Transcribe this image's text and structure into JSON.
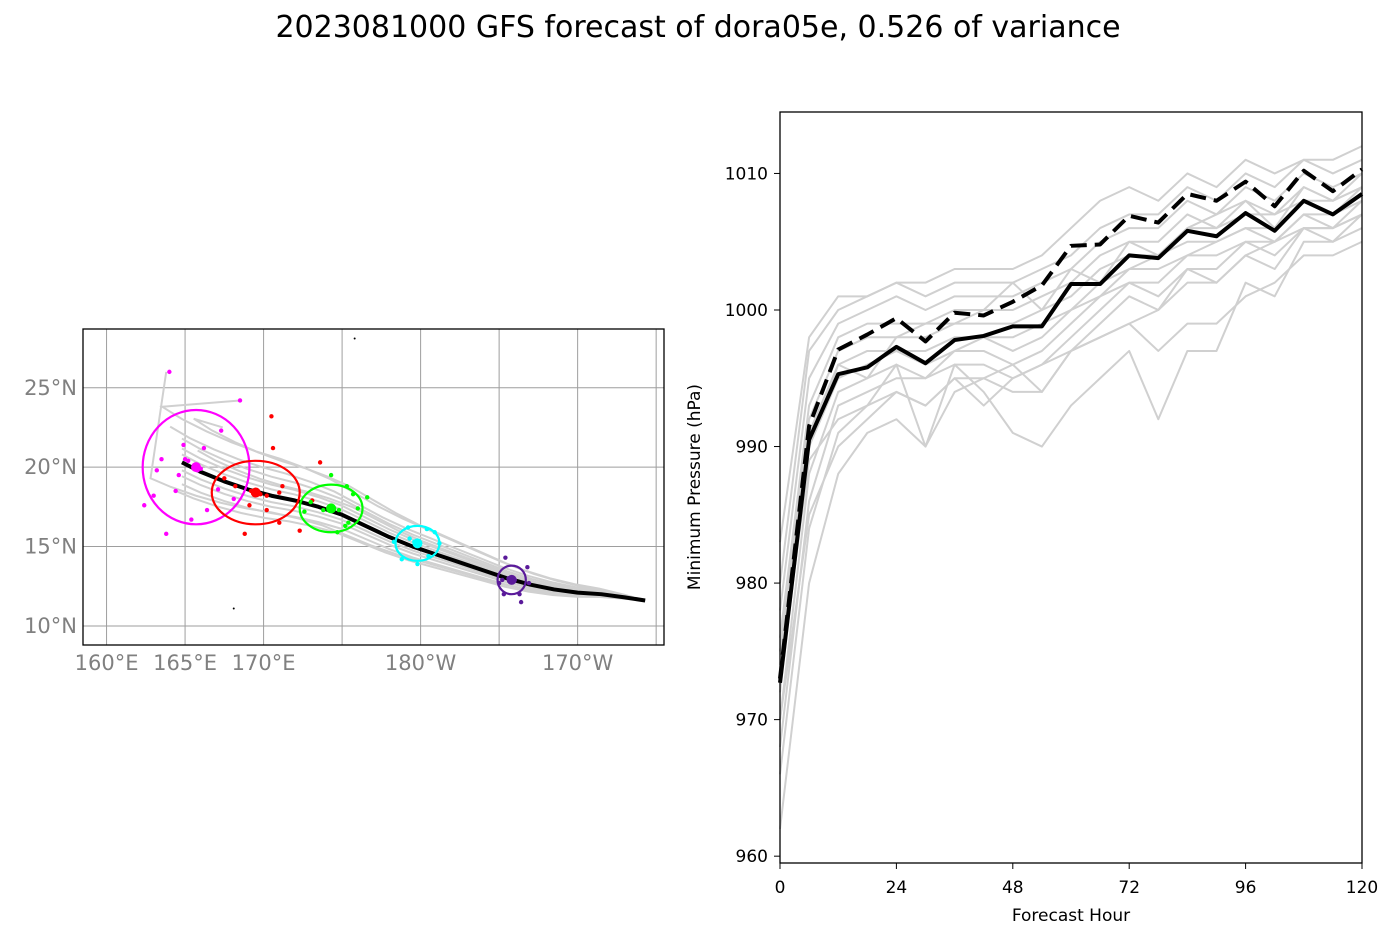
{
  "title": "2023081000 GFS forecast of dora05e, 0.526 of variance",
  "map": {
    "lon_range": [
      158.5,
      195.5
    ],
    "lat_range": [
      8.8,
      28.7
    ],
    "lon_ticks": [
      {
        "value": 160,
        "label": "160°E"
      },
      {
        "value": 165,
        "label": "165°E"
      },
      {
        "value": 170,
        "label": "170°E"
      },
      {
        "value": 180,
        "label": "180°W"
      },
      {
        "value": 190,
        "label": "170°W"
      }
    ],
    "lon_grid": [
      160,
      165,
      170,
      175,
      180,
      185,
      190,
      195
    ],
    "lat_ticks": [
      {
        "value": 10,
        "label": "10°N"
      },
      {
        "value": 15,
        "label": "15°N"
      },
      {
        "value": 20,
        "label": "20°N"
      },
      {
        "value": 25,
        "label": "25°N"
      }
    ],
    "mean_track": [
      [
        194.3,
        11.6
      ],
      [
        193,
        11.8
      ],
      [
        191.5,
        12
      ],
      [
        190,
        12.1
      ],
      [
        188.5,
        12.3
      ],
      [
        187,
        12.6
      ],
      [
        185.5,
        13
      ],
      [
        184,
        13.5
      ],
      [
        182.5,
        14
      ],
      [
        181,
        14.5
      ],
      [
        179.5,
        15
      ],
      [
        178,
        15.6
      ],
      [
        176.5,
        16.3
      ],
      [
        175,
        17
      ],
      [
        173.5,
        17.5
      ],
      [
        172,
        17.9
      ],
      [
        170.5,
        18.2
      ],
      [
        169,
        18.6
      ],
      [
        167.5,
        19.1
      ],
      [
        166,
        19.7
      ],
      [
        164.8,
        20.3
      ]
    ],
    "ellipses": [
      {
        "color": "#ff00ff",
        "cx": 165.7,
        "cy": 20.0,
        "rx": 3.4,
        "ry": 3.6,
        "dots": [
          [
            164,
            26
          ],
          [
            163.5,
            20.5
          ],
          [
            163,
            18.2
          ],
          [
            162.4,
            17.6
          ],
          [
            163.2,
            19.8
          ],
          [
            164.4,
            18.5
          ],
          [
            164.9,
            21.4
          ],
          [
            165.4,
            16.7
          ],
          [
            166.4,
            17.3
          ],
          [
            167.1,
            18.6
          ],
          [
            168.1,
            18
          ],
          [
            168.5,
            24.2
          ],
          [
            167.3,
            22.3
          ],
          [
            166.2,
            21.2
          ],
          [
            164.6,
            19.5
          ],
          [
            163.8,
            15.8
          ],
          [
            165,
            20.5
          ],
          [
            165.2,
            20.4
          ],
          [
            165.8,
            19.8
          ],
          [
            166,
            19.9
          ]
        ]
      },
      {
        "color": "#ff0000",
        "cx": 169.5,
        "cy": 18.4,
        "rx": 2.8,
        "ry": 2.0,
        "dots": [
          [
            170.5,
            23.2
          ],
          [
            170.6,
            21.2
          ],
          [
            171.2,
            18.8
          ],
          [
            171,
            18.4
          ],
          [
            170.2,
            17.3
          ],
          [
            169.1,
            17.6
          ],
          [
            168.8,
            15.8
          ],
          [
            171,
            16.5
          ],
          [
            169.5,
            18.4
          ],
          [
            169.8,
            18.3
          ],
          [
            169.2,
            18.5
          ],
          [
            170.2,
            18.2
          ],
          [
            168.2,
            18.8
          ],
          [
            167.5,
            19.3
          ],
          [
            172.3,
            16
          ],
          [
            173.1,
            17.9
          ],
          [
            173.6,
            20.3
          ]
        ]
      },
      {
        "color": "#00ff00",
        "cx": 174.3,
        "cy": 17.4,
        "rx": 2.0,
        "ry": 1.5,
        "dots": [
          [
            174.3,
            19.5
          ],
          [
            175.7,
            18.3
          ],
          [
            176,
            17.4
          ],
          [
            175.4,
            16.5
          ],
          [
            174.7,
            15.9
          ],
          [
            173,
            17.8
          ],
          [
            172.6,
            17.2
          ],
          [
            175.3,
            18.8
          ],
          [
            174.5,
            17.4
          ],
          [
            174.8,
            17.3
          ],
          [
            173.8,
            17.3
          ],
          [
            175.2,
            16.3
          ],
          [
            176.6,
            18.1
          ]
        ]
      },
      {
        "color": "#00ffff",
        "cx": 179.8,
        "cy": 15.2,
        "rx": 1.4,
        "ry": 1.1,
        "dots": [
          [
            180.9,
            15.9
          ],
          [
            181.2,
            15.2
          ],
          [
            180.5,
            14.4
          ],
          [
            179.8,
            13.9
          ],
          [
            178.8,
            14.2
          ],
          [
            178.3,
            15.3
          ],
          [
            179.2,
            16.2
          ],
          [
            180.4,
            16.1
          ],
          [
            179.6,
            15.3
          ],
          [
            179.8,
            15.2
          ],
          [
            179.3,
            15.5
          ]
        ]
      },
      {
        "color": "#5a1a9a",
        "cx": 185.8,
        "cy": 12.9,
        "rx": 0.9,
        "ry": 0.9,
        "dots": [
          [
            185.4,
            14.3
          ],
          [
            186.8,
            13.7
          ],
          [
            186.9,
            12.7
          ],
          [
            186.3,
            12
          ],
          [
            186.4,
            11.5
          ],
          [
            185.3,
            12
          ],
          [
            185,
            12.7
          ],
          [
            185.6,
            13
          ],
          [
            186,
            12.9
          ],
          [
            185.7,
            12.8
          ],
          [
            185.2,
            12.9
          ]
        ]
      }
    ],
    "markers": [
      [
        175.8,
        28.1
      ],
      [
        168.1,
        11.1
      ]
    ]
  },
  "chart_data": {
    "type": "line",
    "xlabel": "Forecast Hour",
    "ylabel": "Minimum Pressure (hPa)",
    "xlim": [
      0,
      120
    ],
    "ylim": [
      959.5,
      1014.5
    ],
    "xticks": [
      0,
      24,
      48,
      72,
      96,
      120
    ],
    "yticks": [
      960,
      970,
      980,
      990,
      1000,
      1010
    ],
    "x": [
      0,
      6,
      12,
      18,
      24,
      30,
      36,
      42,
      48,
      54,
      60,
      66,
      72,
      78,
      84,
      90,
      96,
      102,
      108,
      114,
      120
    ],
    "series": [
      {
        "style": "solid-black",
        "values": [
          972.7,
          990.5,
          995.3,
          995.8,
          997.3,
          996.1,
          997.8,
          998.1,
          998.8,
          998.8,
          1001.9,
          1001.9,
          1004.0,
          1003.8,
          1005.8,
          1005.4,
          1007.1,
          1005.8,
          1008.0,
          1007.0,
          1008.5
        ]
      },
      {
        "style": "dashed-black",
        "values": [
          973.0,
          991.5,
          997.1,
          998.2,
          999.4,
          997.7,
          999.8,
          999.6,
          1000.6,
          1001.8,
          1004.7,
          1004.8,
          1006.9,
          1006.4,
          1008.5,
          1008.0,
          1009.4,
          1007.6,
          1010.2,
          1008.7,
          1010.3
        ]
      },
      {
        "style": "ensemble",
        "values": [
          962,
          980,
          988,
          991,
          992,
          990,
          996,
          994,
          991,
          990,
          993,
          995,
          997,
          992,
          997,
          997,
          1002,
          1001,
          1005,
          1005,
          1006
        ]
      },
      {
        "style": "ensemble",
        "values": [
          966,
          984,
          991,
          993,
          994,
          993,
          995,
          995,
          994,
          994,
          997,
          999,
          1001,
          1000,
          1003,
          1002,
          1004,
          1003,
          1006,
          1005,
          1007
        ]
      },
      {
        "style": "ensemble",
        "values": [
          968,
          986,
          993,
          994,
          995,
          995,
          996,
          996,
          995,
          996,
          998,
          1000,
          1002,
          1001,
          1003,
          1003,
          1005,
          1004,
          1006,
          1006,
          1007
        ]
      },
      {
        "style": "ensemble",
        "values": [
          970,
          988,
          994,
          995,
          996,
          995,
          997,
          997,
          996,
          997,
          999,
          1001,
          1002,
          1002,
          1004,
          1004,
          1005,
          1005,
          1007,
          1006,
          1008
        ]
      },
      {
        "style": "ensemble",
        "values": [
          972,
          990,
          995,
          996,
          997,
          996,
          997,
          998,
          997,
          998,
          1000,
          1001,
          1003,
          1003,
          1004,
          1005,
          1006,
          1005,
          1007,
          1007,
          1008
        ]
      },
      {
        "style": "ensemble",
        "values": [
          974,
          991,
          996,
          997,
          997,
          997,
          998,
          998,
          998,
          999,
          1000,
          1002,
          1003,
          1004,
          1005,
          1005,
          1006,
          1006,
          1008,
          1007,
          1009
        ]
      },
      {
        "style": "ensemble",
        "values": [
          975,
          992,
          997,
          998,
          998,
          998,
          999,
          999,
          999,
          1000,
          1001,
          1003,
          1004,
          1004,
          1006,
          1006,
          1007,
          1007,
          1008,
          1008,
          1009
        ]
      },
      {
        "style": "ensemble",
        "values": [
          976,
          993,
          998,
          999,
          999,
          999,
          1000,
          1000,
          1000,
          1001,
          1002,
          1004,
          1005,
          1005,
          1007,
          1006,
          1008,
          1007,
          1009,
          1008,
          1010
        ]
      },
      {
        "style": "ensemble",
        "values": [
          978,
          995,
          999,
          1000,
          1001,
          1000,
          1001,
          1001,
          1001,
          1002,
          1003,
          1005,
          1006,
          1006,
          1008,
          1007,
          1009,
          1008,
          1010,
          1009,
          1010
        ]
      },
      {
        "style": "ensemble",
        "values": [
          980,
          997,
          1000,
          1001,
          1002,
          1001,
          1002,
          1002,
          1002,
          1003,
          1004,
          1006,
          1007,
          1007,
          1009,
          1008,
          1010,
          1009,
          1011,
          1010,
          1011
        ]
      },
      {
        "style": "ensemble",
        "values": [
          983,
          998,
          1001,
          1001,
          1002,
          1002,
          1003,
          1003,
          1003,
          1004,
          1006,
          1008,
          1009,
          1008,
          1010,
          1009,
          1011,
          1010,
          1011,
          1011,
          1012
        ]
      },
      {
        "style": "ensemble",
        "values": [
          970,
          985,
          990,
          992,
          994,
          993,
          995,
          993,
          995,
          996,
          997,
          998,
          999,
          997,
          999,
          999,
          1001,
          1002,
          1004,
          1004,
          1005
        ]
      },
      {
        "style": "ensemble",
        "values": [
          973,
          989,
          992,
          993,
          996,
          990,
          994,
          995,
          996,
          994,
          997,
          998,
          999,
          1000,
          1002,
          1002,
          1004,
          1005,
          1006,
          1006,
          1007
        ]
      },
      {
        "style": "ensemble",
        "values": [
          975,
          990,
          996,
          995,
          998,
          999,
          999,
          1000,
          1002,
          1000,
          1003,
          1002,
          1005,
          1004,
          1006,
          1007,
          1008,
          1006,
          1009,
          1008,
          1009
        ]
      }
    ]
  }
}
